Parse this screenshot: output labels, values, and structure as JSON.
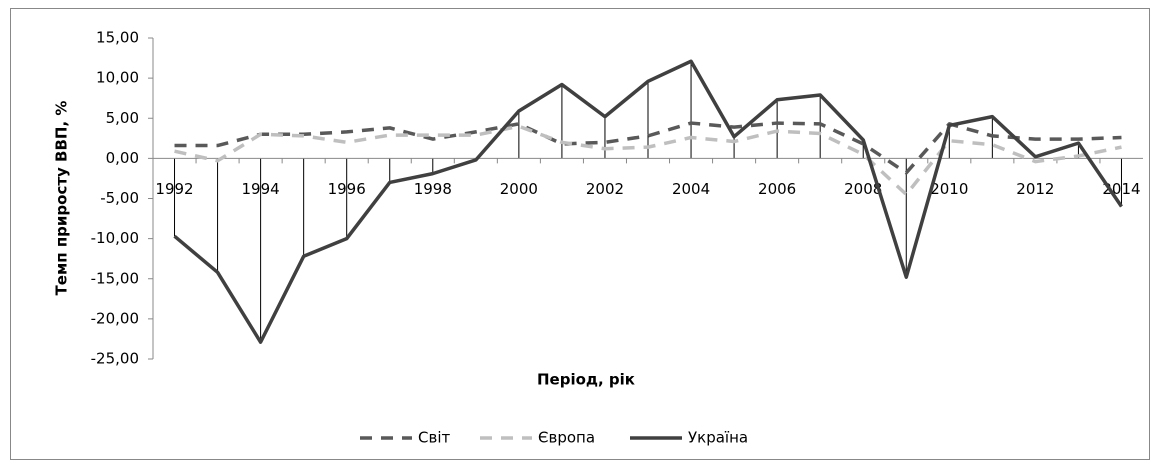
{
  "chart_data": {
    "type": "line",
    "ylabel": "Темп приросту ВВП, %",
    "xlabel": "Період, рік",
    "categories": [
      "1992",
      null,
      "1994",
      null,
      "1996",
      null,
      "1998",
      null,
      "2000",
      null,
      "2002",
      null,
      "2004",
      null,
      "2006",
      null,
      "2008",
      null,
      "2010",
      null,
      "2012",
      null,
      "2014"
    ],
    "series": [
      {
        "name": "Світ",
        "color": "#595959",
        "style": "dashed",
        "values": [
          1.6,
          1.6,
          3.0,
          3.0,
          3.3,
          3.8,
          2.4,
          3.3,
          4.3,
          1.8,
          2.0,
          2.8,
          4.4,
          3.9,
          4.4,
          4.3,
          1.8,
          -1.8,
          4.3,
          2.8,
          2.4,
          2.4,
          2.6
        ]
      },
      {
        "name": "Європа",
        "color": "#bfbfbf",
        "style": "dashed",
        "values": [
          0.9,
          -0.3,
          3.0,
          2.8,
          2.0,
          2.9,
          2.9,
          2.9,
          4.0,
          2.0,
          1.2,
          1.4,
          2.6,
          2.1,
          3.4,
          3.1,
          0.5,
          -4.5,
          2.2,
          1.7,
          -0.4,
          0.3,
          1.4
        ]
      },
      {
        "name": "Україна",
        "color": "#404040",
        "style": "solid",
        "drop_lines": true,
        "values": [
          -9.7,
          -14.2,
          -22.9,
          -12.2,
          -10.0,
          -3.0,
          -1.9,
          -0.2,
          5.9,
          9.2,
          5.2,
          9.6,
          12.1,
          2.7,
          7.3,
          7.9,
          2.3,
          -14.8,
          4.1,
          5.2,
          0.2,
          1.9,
          -6.0
        ]
      }
    ],
    "ylim": [
      -25,
      15
    ],
    "yticks": [
      {
        "value": -25,
        "label": "-25,00"
      },
      {
        "value": -20,
        "label": "-20,00"
      },
      {
        "value": -15,
        "label": "-15,00"
      },
      {
        "value": -10,
        "label": "-10,00"
      },
      {
        "value": -5,
        "label": "-5,00"
      },
      {
        "value": 0,
        "label": "0,00"
      },
      {
        "value": 5,
        "label": "5,00"
      },
      {
        "value": 10,
        "label": "10,00"
      },
      {
        "value": 15,
        "label": "15,00"
      }
    ],
    "grid": false,
    "legend": "bottom"
  }
}
